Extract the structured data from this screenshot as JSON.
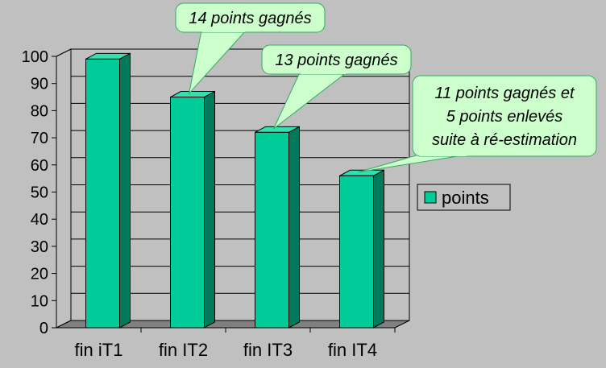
{
  "chart_data": {
    "type": "bar",
    "categories": [
      "fin iT1",
      "fin IT2",
      "fin IT3",
      "fin IT4"
    ],
    "series": [
      {
        "name": "points",
        "values": [
          99,
          85,
          72,
          56
        ]
      }
    ],
    "ylim": [
      0,
      100
    ],
    "yticks": [
      0,
      10,
      20,
      30,
      40,
      50,
      60,
      70,
      80,
      90,
      100
    ],
    "grid": true,
    "legend": "right",
    "bar_3d": true,
    "colors": {
      "bar_front": "#00cc99",
      "bar_side": "#007a5a",
      "bar_top": "#33e0b0",
      "background": "#c0c0c0",
      "callout_fill": "#ccffcc",
      "callout_stroke": "#33aa66"
    },
    "annotations": [
      {
        "target": 1,
        "lines": [
          "14 points gagnés"
        ]
      },
      {
        "target": 2,
        "lines": [
          "13 points gagnés"
        ]
      },
      {
        "target": 3,
        "lines": [
          "11 points gagnés et",
          "5 points enlevés",
          "suite à ré-estimation"
        ]
      }
    ]
  }
}
